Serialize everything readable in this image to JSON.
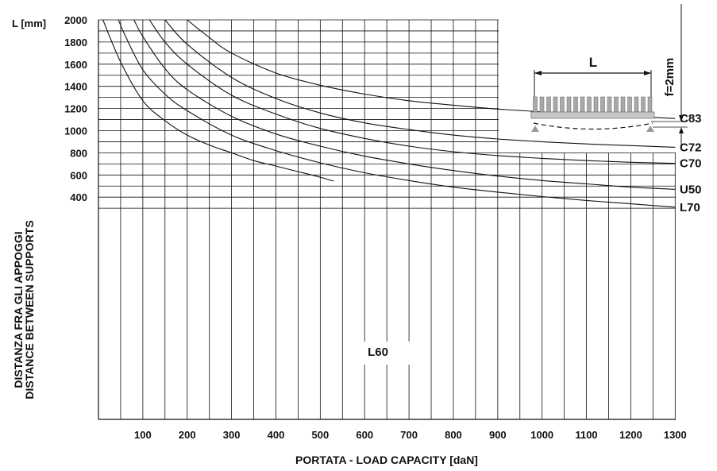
{
  "chart_data": {
    "type": "line",
    "title": "",
    "xlabel": "PORTATA - LOAD CAPACITY  [daN]",
    "ylabel_lines": [
      "DISTANZA FRA GLI APPOGGI",
      "DISTANCE BETWEEN SUPPORTS"
    ],
    "y_unit_label": "L [mm]",
    "xlim": [
      0,
      1300
    ],
    "ylim": [
      200,
      2000
    ],
    "x_ticks": [
      100,
      200,
      300,
      400,
      500,
      600,
      700,
      800,
      900,
      1000,
      1100,
      1200,
      1300
    ],
    "x_tick_labels": [
      "100",
      "200",
      "300",
      "400",
      "500",
      "600",
      "700",
      "800",
      "900",
      "1000",
      "1100",
      "1200",
      "1300"
    ],
    "y_ticks": [
      400,
      600,
      800,
      1000,
      1200,
      1400,
      1600,
      1800,
      2000
    ],
    "y_tick_labels": [
      "400",
      "600",
      "800",
      "1000",
      "1200",
      "1400",
      "1600",
      "1800",
      "2000"
    ],
    "grid": true,
    "series": [
      {
        "name": "L60",
        "x": [
          10,
          50,
          100,
          150,
          200,
          250,
          300,
          350,
          400,
          450,
          500,
          530
        ],
        "y": [
          2000,
          1620,
          1270,
          1090,
          960,
          870,
          800,
          730,
          680,
          630,
          580,
          545
        ]
      },
      {
        "name": "L70",
        "x": [
          45,
          60,
          100,
          150,
          200,
          300,
          400,
          500,
          600,
          700,
          800,
          900,
          1000,
          1100,
          1200,
          1300
        ],
        "y": [
          2000,
          1860,
          1550,
          1330,
          1180,
          960,
          820,
          710,
          620,
          550,
          490,
          445,
          405,
          370,
          340,
          310
        ]
      },
      {
        "name": "U50",
        "x": [
          80,
          100,
          150,
          200,
          300,
          400,
          500,
          600,
          700,
          800,
          900,
          1000,
          1100,
          1200,
          1300
        ],
        "y": [
          2000,
          1850,
          1560,
          1370,
          1130,
          970,
          860,
          770,
          700,
          640,
          590,
          550,
          520,
          490,
          470
        ]
      },
      {
        "name": "C70",
        "x": [
          115,
          150,
          200,
          300,
          400,
          500,
          600,
          700,
          800,
          900,
          1000,
          1100,
          1200,
          1300
        ],
        "y": [
          2000,
          1800,
          1600,
          1320,
          1150,
          1020,
          930,
          860,
          810,
          775,
          750,
          730,
          715,
          705
        ]
      },
      {
        "name": "C72",
        "x": [
          150,
          200,
          300,
          400,
          500,
          600,
          700,
          800,
          900,
          1000,
          1100,
          1200,
          1300
        ],
        "y": [
          2000,
          1780,
          1480,
          1290,
          1160,
          1070,
          1010,
          960,
          925,
          900,
          880,
          865,
          850
        ]
      },
      {
        "name": "C83",
        "x": [
          200,
          250,
          300,
          400,
          500,
          600,
          700,
          800,
          900,
          1000,
          1100,
          1200,
          1300
        ],
        "y": [
          2000,
          1840,
          1700,
          1520,
          1410,
          1330,
          1270,
          1230,
          1195,
          1170,
          1150,
          1130,
          1110
        ]
      }
    ],
    "inset": {
      "span_label": "L",
      "deflection_label": "f=2mm"
    }
  }
}
